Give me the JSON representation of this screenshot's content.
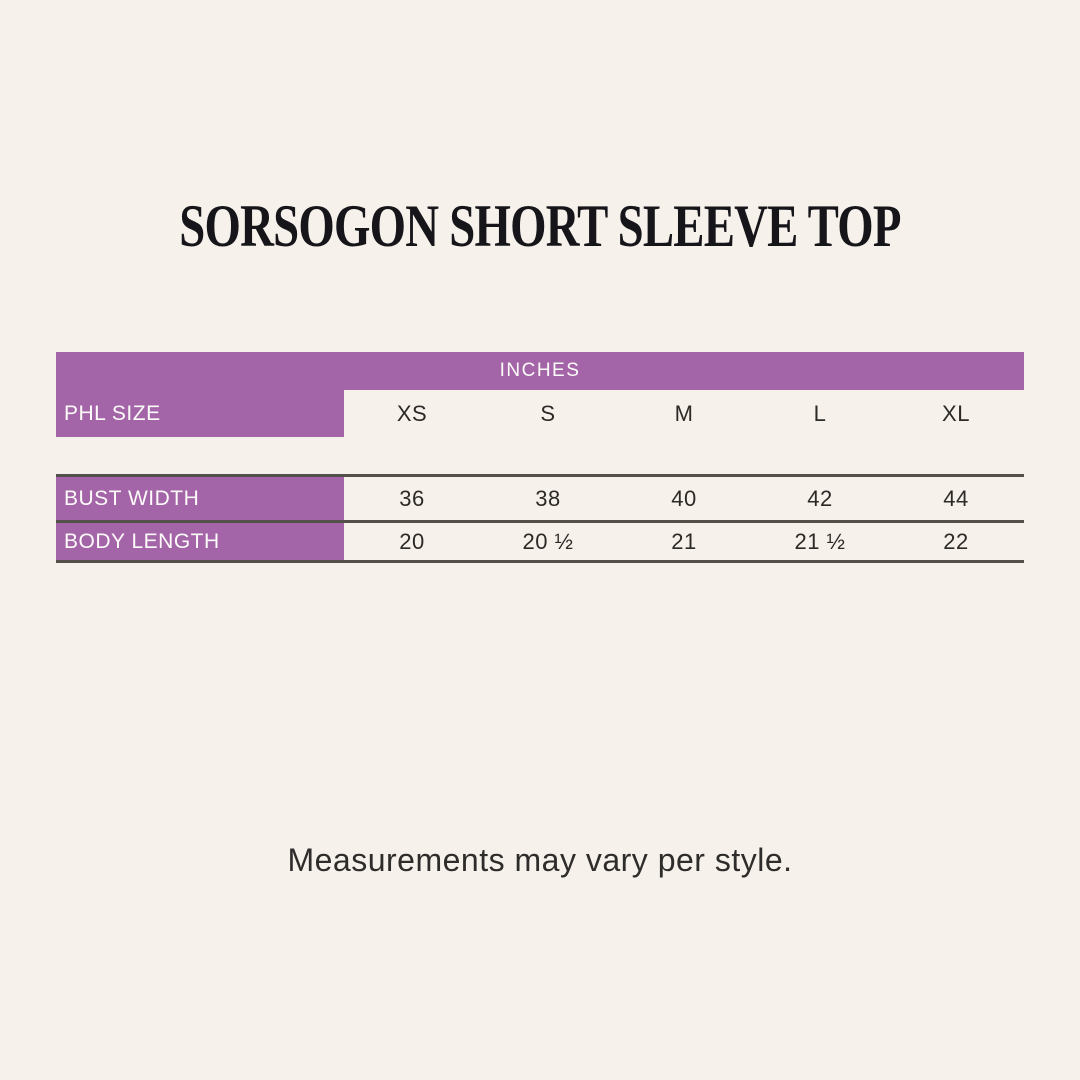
{
  "page": {
    "title": "SORSOGON SHORT SLEEVE TOP",
    "footnote": "Measurements may vary per style."
  },
  "size_chart": {
    "unit_header": "INCHES",
    "size_label": "PHL SIZE",
    "sizes": [
      "XS",
      "S",
      "M",
      "L",
      "XL"
    ],
    "rows": [
      {
        "label": "BUST WIDTH",
        "values": [
          "36",
          "38",
          "40",
          "42",
          "44"
        ]
      },
      {
        "label": "BODY LENGTH",
        "values": [
          "20",
          "20 ½",
          "21",
          "21 ½",
          "22"
        ]
      }
    ]
  },
  "chart_data": {
    "type": "table",
    "title": "SORSOGON SHORT SLEEVE TOP",
    "unit": "INCHES",
    "columns": [
      "PHL SIZE",
      "XS",
      "S",
      "M",
      "L",
      "XL"
    ],
    "rows": [
      [
        "BUST WIDTH",
        36,
        38,
        40,
        42,
        44
      ],
      [
        "BODY LENGTH",
        20,
        20.5,
        21,
        21.5,
        22
      ]
    ],
    "note": "Measurements may vary per style."
  },
  "colors": {
    "background": "#f7f1eb",
    "accent_purple": "#a465a8",
    "line": "#534f4b",
    "text_dark": "#2c2a27",
    "text_on_purple": "#fdfbf9"
  }
}
